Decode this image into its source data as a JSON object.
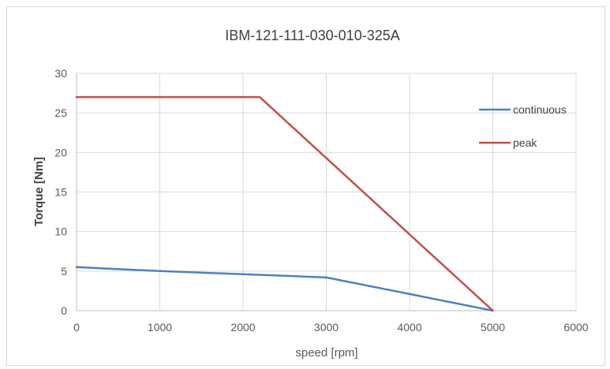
{
  "chart_data": {
    "type": "line",
    "title": "IBM-121-111-030-010-325A",
    "xlabel": "speed [rpm]",
    "ylabel": "Torque [Nm]",
    "xlim": [
      0,
      6000
    ],
    "ylim": [
      0,
      30
    ],
    "xticks": [
      "0",
      "1000",
      "2000",
      "3000",
      "4000",
      "5000",
      "6000"
    ],
    "yticks": [
      "0",
      "5",
      "10",
      "15",
      "20",
      "25",
      "30"
    ],
    "grid": true,
    "legend_position": "top-right",
    "series": [
      {
        "name": "continuous",
        "color": "#4f81bd",
        "points": [
          {
            "x": 0,
            "y": 5.5
          },
          {
            "x": 1000,
            "y": 5.0
          },
          {
            "x": 2000,
            "y": 4.6
          },
          {
            "x": 3000,
            "y": 4.2
          },
          {
            "x": 4000,
            "y": 2.1
          },
          {
            "x": 5000,
            "y": 0
          }
        ]
      },
      {
        "name": "peak",
        "color": "#c0504d",
        "points": [
          {
            "x": 0,
            "y": 27
          },
          {
            "x": 2200,
            "y": 27
          },
          {
            "x": 5000,
            "y": 0
          }
        ]
      }
    ]
  }
}
